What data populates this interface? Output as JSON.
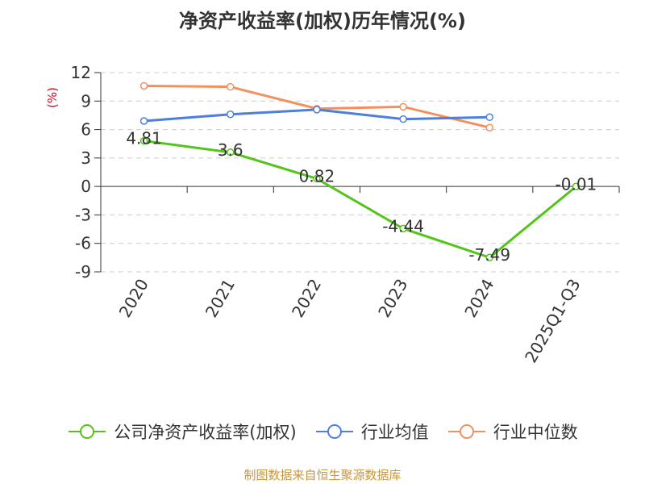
{
  "chart_data": {
    "type": "line",
    "title": "净资产收益率(加权)历年情况(%)",
    "ylabel": "(%)",
    "xlabel": "",
    "categories": [
      "2020",
      "2021",
      "2022",
      "2023",
      "2024",
      "2025Q1-Q3"
    ],
    "ylim": [
      -9,
      12
    ],
    "yticks": [
      12,
      9,
      6,
      3,
      0,
      -3,
      -6,
      -9
    ],
    "series": [
      {
        "name": "公司净资产收益率(加权)",
        "color": "#52c41a",
        "values": [
          4.81,
          3.6,
          0.82,
          -4.44,
          -7.49,
          -0.01
        ],
        "labels": [
          "4.81",
          "3.6",
          "0.82",
          "-4.44",
          "-7.49",
          "-0.01"
        ]
      },
      {
        "name": "行业均值",
        "color": "#4e7fdc",
        "values": [
          6.9,
          7.6,
          8.1,
          7.1,
          7.3,
          null
        ]
      },
      {
        "name": "行业中位数",
        "color": "#f2915f",
        "values": [
          10.6,
          10.5,
          8.2,
          8.4,
          6.2,
          null
        ]
      }
    ],
    "grid": true,
    "legend": "bottom"
  },
  "footer": {
    "source": "制图数据来自恒生聚源数据库"
  }
}
